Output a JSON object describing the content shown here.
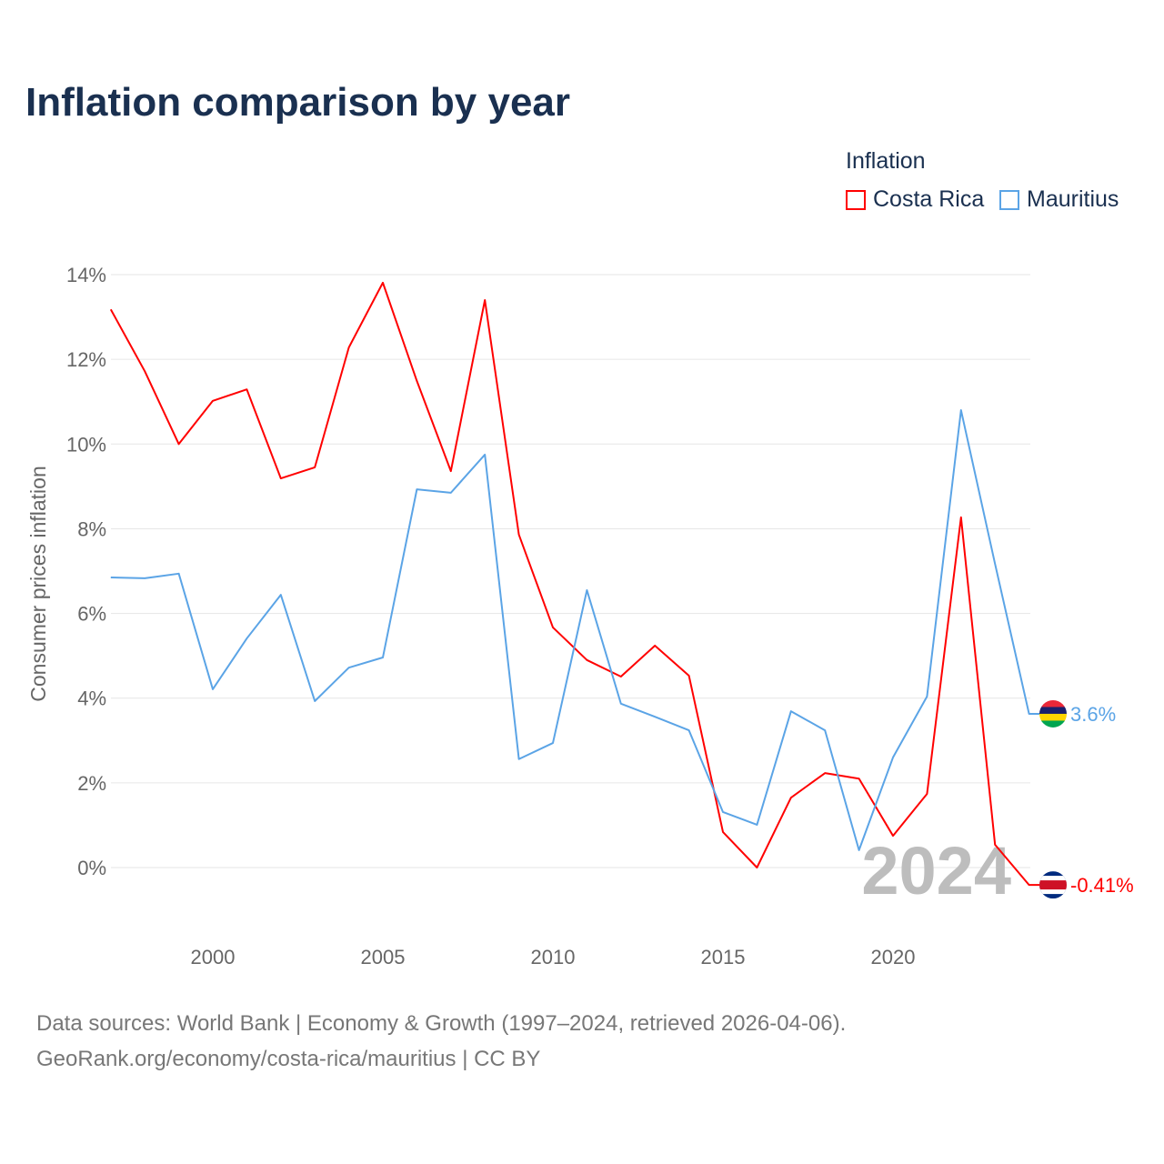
{
  "title": "Inflation comparison by year",
  "legend": {
    "title": "Inflation",
    "items": [
      "Costa Rica",
      "Mauritius"
    ]
  },
  "footer": {
    "line1": "Data sources: World Bank | Economy & Growth (1997–2024, retrieved 2026-04-06).",
    "line2": "GeoRank.org/economy/costa-rica/mauritius | CC BY"
  },
  "chart_data": {
    "type": "line",
    "title": "Inflation comparison by year",
    "xlabel": "",
    "ylabel": "Consumer prices inflation",
    "x": [
      1997,
      1998,
      1999,
      2000,
      2001,
      2002,
      2003,
      2004,
      2005,
      2006,
      2007,
      2008,
      2009,
      2010,
      2011,
      2012,
      2013,
      2014,
      2015,
      2016,
      2017,
      2018,
      2019,
      2020,
      2021,
      2022,
      2023,
      2024
    ],
    "xticks": [
      2000,
      2005,
      2010,
      2015,
      2020
    ],
    "yticks": [
      0,
      2,
      4,
      6,
      8,
      10,
      12,
      14
    ],
    "ytick_labels": [
      "0%",
      "2%",
      "4%",
      "6%",
      "8%",
      "10%",
      "12%",
      "14%"
    ],
    "ylim": [
      -1.5,
      14.5
    ],
    "watermark_year": "2024",
    "series": [
      {
        "name": "Costa Rica",
        "color": "#ff0000",
        "end_label": "-0.41%",
        "values": [
          13.18,
          11.72,
          10.0,
          11.02,
          11.29,
          9.19,
          9.45,
          12.28,
          13.81,
          11.49,
          9.36,
          13.4,
          7.86,
          5.67,
          4.9,
          4.51,
          5.24,
          4.53,
          0.84,
          0.0,
          1.65,
          2.23,
          2.1,
          0.75,
          1.74,
          8.27,
          0.54,
          -0.41
        ]
      },
      {
        "name": "Mauritius",
        "color": "#5ba4e6",
        "end_label": "3.6%",
        "values": [
          6.85,
          6.83,
          6.94,
          4.21,
          5.41,
          6.44,
          3.93,
          4.72,
          4.96,
          8.93,
          8.85,
          9.75,
          2.56,
          2.94,
          6.55,
          3.87,
          3.56,
          3.24,
          1.31,
          1.01,
          3.69,
          3.24,
          0.41,
          2.6,
          4.04,
          10.8,
          7.17,
          3.63
        ]
      }
    ]
  }
}
